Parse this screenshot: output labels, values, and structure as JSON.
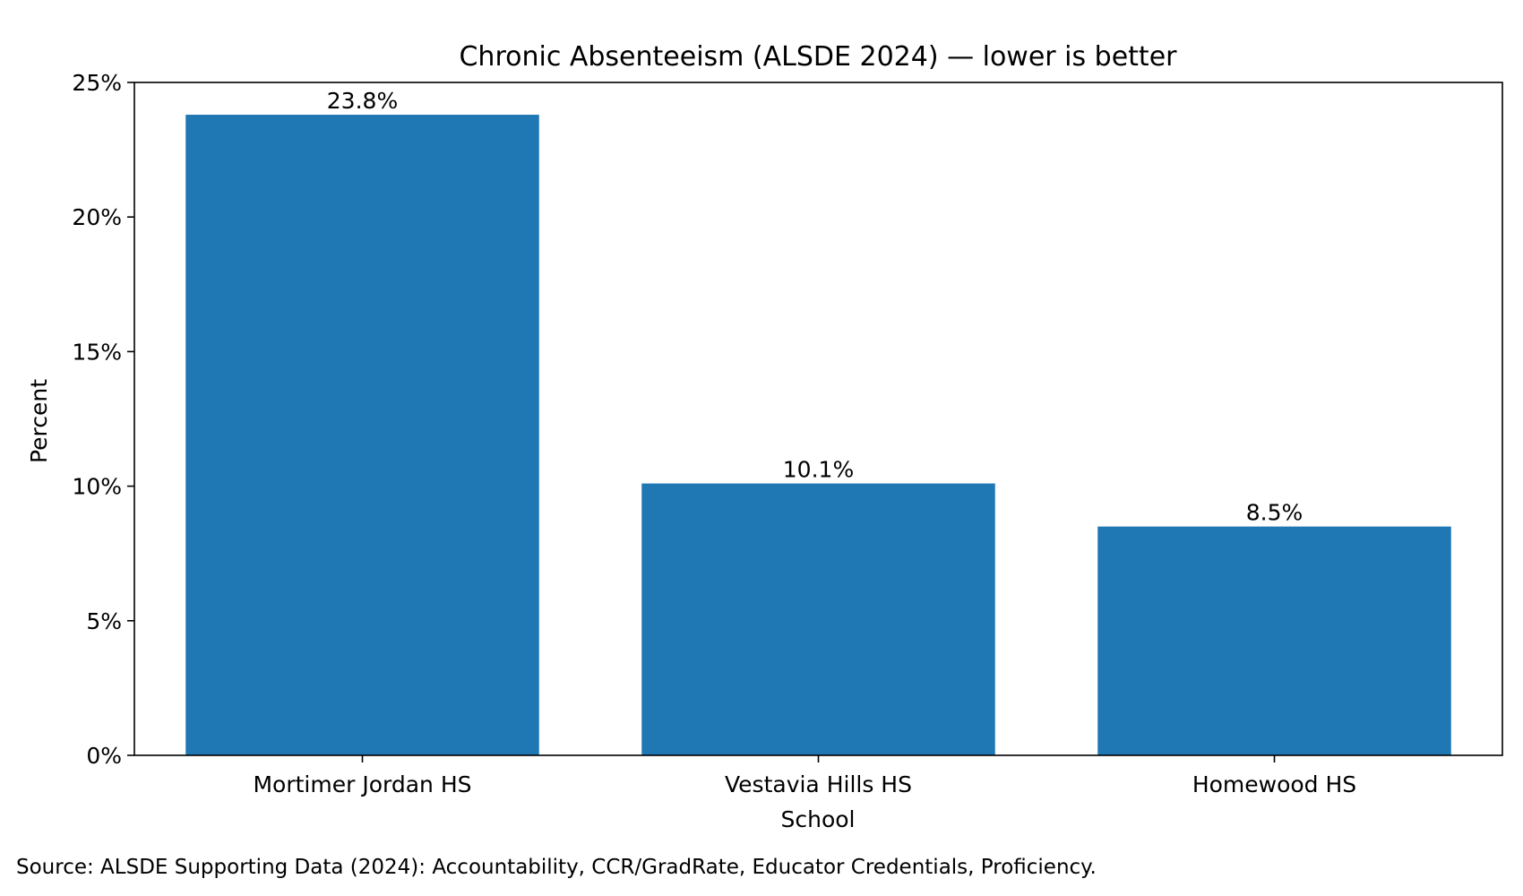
{
  "chart_data": {
    "type": "bar",
    "title": "Chronic Absenteeism (ALSDE 2024) — lower is better",
    "xlabel": "School",
    "ylabel": "Percent",
    "categories": [
      "Mortimer Jordan HS",
      "Vestavia Hills HS",
      "Homewood HS"
    ],
    "values": [
      23.8,
      10.1,
      8.5
    ],
    "value_labels": [
      "23.8%",
      "10.1%",
      "8.5%"
    ],
    "ylim": [
      0,
      25
    ],
    "yticks": [
      0,
      5,
      10,
      15,
      20,
      25
    ],
    "ytick_labels": [
      "0%",
      "5%",
      "10%",
      "15%",
      "20%",
      "25%"
    ],
    "bar_color": "#1f77b4",
    "grid": false,
    "legend": "none"
  },
  "source_note": "Source: ALSDE Supporting Data (2024): Accountability, CCR/GradRate, Educator Credentials, Proficiency."
}
